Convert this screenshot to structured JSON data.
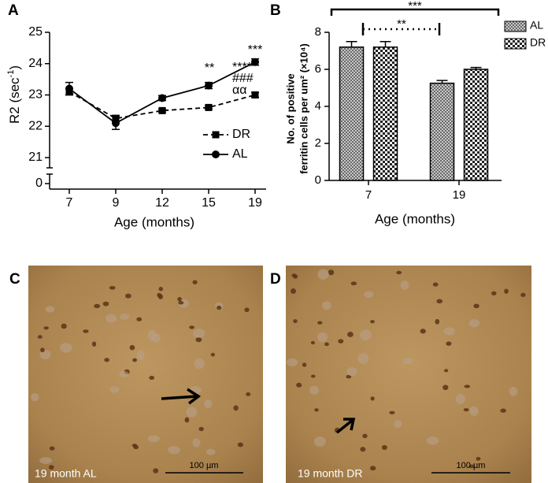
{
  "chart_data": [
    {
      "type": "line",
      "panel_label": "A",
      "x_label": "Age (months)",
      "y_label": {
        "text": "R2 (sec",
        "sup": "-1",
        "end": ")"
      },
      "categories": [
        "7",
        "9",
        "12",
        "15",
        "19"
      ],
      "series": [
        {
          "name": "DR",
          "color": "#000000",
          "line_style": "dashed",
          "marker": "square",
          "values": [
            23.1,
            22.25,
            22.5,
            22.6,
            23.0
          ],
          "errors": [
            0.1,
            0.1,
            0.05,
            0.05,
            0.08
          ]
        },
        {
          "name": "AL",
          "color": "#000000",
          "line_style": "solid",
          "marker": "circle",
          "values": [
            23.2,
            22.1,
            22.9,
            23.3,
            24.05
          ],
          "errors": [
            0.2,
            0.2,
            0.08,
            0.1,
            0.1
          ]
        }
      ],
      "ylim": [
        21,
        25
      ],
      "yticks": [
        0,
        21,
        22,
        23,
        24,
        25
      ],
      "y_break": true,
      "annotations": [
        "**",
        "***",
        "****",
        "###",
        "αα"
      ]
    },
    {
      "type": "bar",
      "panel_label": "B",
      "x_label": "Age (months)",
      "y_label": [
        "No. of positive",
        "ferritin cells per um² (×10⁴)"
      ],
      "categories": [
        "7",
        "19"
      ],
      "series": [
        {
          "name": "AL",
          "pattern": "crosshatch",
          "values": [
            7.2,
            5.25
          ],
          "errors": [
            0.3,
            0.15
          ]
        },
        {
          "name": "DR",
          "pattern": "checker",
          "values": [
            7.2,
            6.0
          ],
          "errors": [
            0.3,
            0.1
          ]
        }
      ],
      "ylim": [
        0,
        8
      ],
      "yticks": [
        0,
        2,
        4,
        6,
        8
      ],
      "annotations": [
        "***",
        "**"
      ]
    }
  ],
  "images": [
    {
      "panel_label": "C",
      "caption": "19 month AL",
      "scale_label": "100 µm"
    },
    {
      "panel_label": "D",
      "caption": "19 month DR",
      "scale_label": "100 µm"
    }
  ]
}
